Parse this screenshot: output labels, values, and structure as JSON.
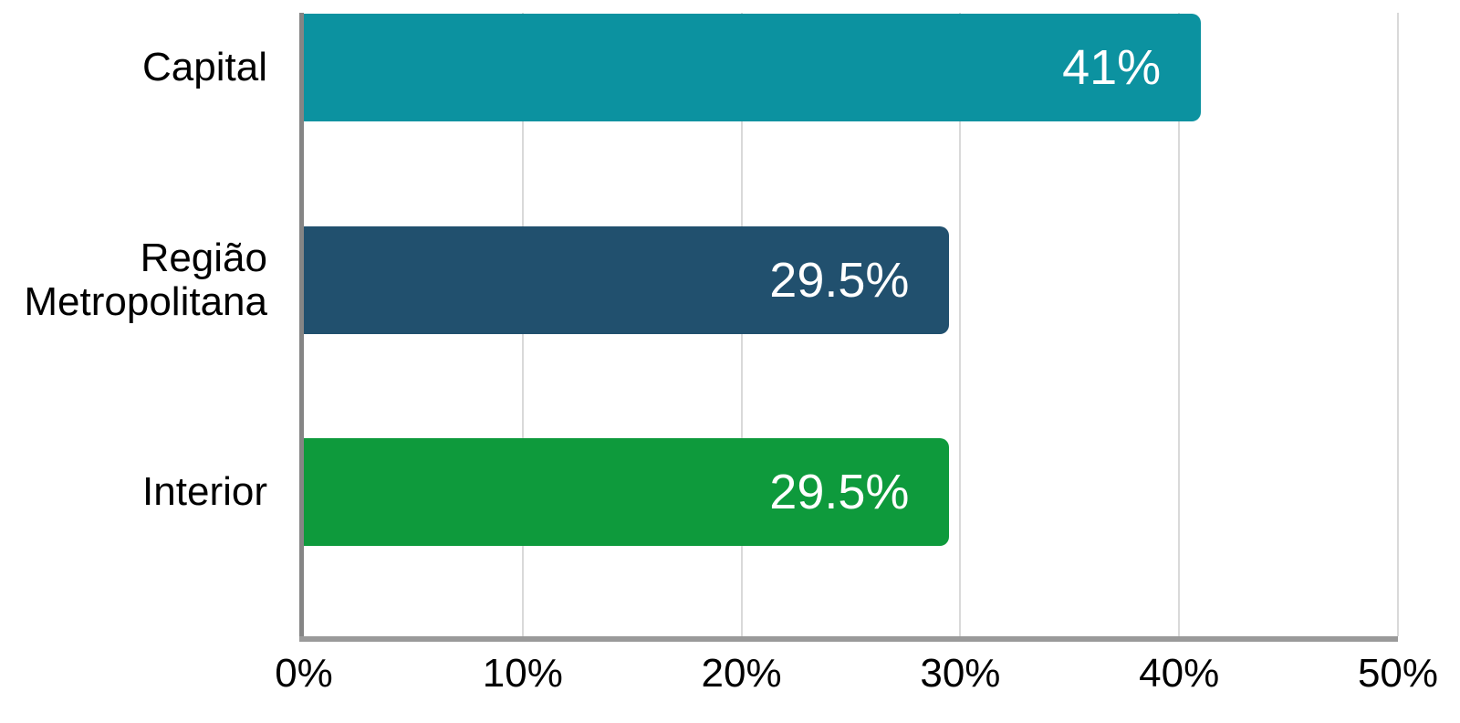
{
  "chart_data": {
    "type": "bar",
    "orientation": "horizontal",
    "title": "",
    "categories": [
      "Capital",
      "Região Metropolitana",
      "Interior"
    ],
    "values": [
      41,
      29.5,
      29.5
    ],
    "value_labels": [
      "41%",
      "29.5%",
      "29.5%"
    ],
    "bar_colors": [
      "#0C92A0",
      "#21506E",
      "#0E9A3C"
    ],
    "xlabel": "",
    "ylabel": "",
    "xlim": [
      0,
      50
    ],
    "x_ticks": [
      0,
      10,
      20,
      30,
      40,
      50
    ],
    "x_tick_labels": [
      "0%",
      "10%",
      "20%",
      "30%",
      "40%",
      "50%"
    ],
    "grid": "vertical",
    "legend": false
  },
  "colors": {
    "background": "#FFFFFF",
    "axis_line_vertical": "#858585",
    "axis_line_horizontal": "#9A9A9A",
    "gridline": "#D9D9D9",
    "category_label": "#000000",
    "tick_label": "#000000",
    "value_label": "#FFFFFF"
  }
}
